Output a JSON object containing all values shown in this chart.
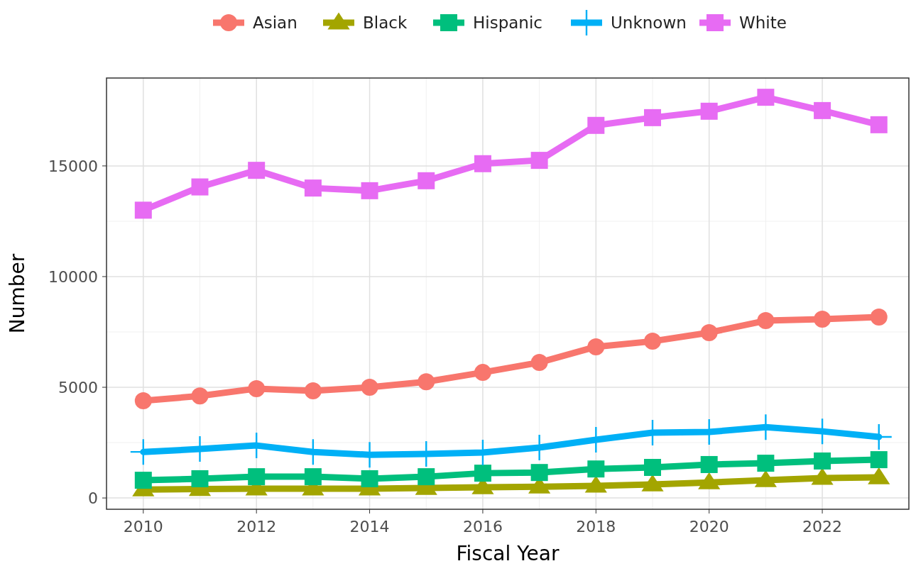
{
  "chart_data": {
    "type": "line",
    "xlabel": "Fiscal Year",
    "ylabel": "Number",
    "x": [
      2010,
      2011,
      2012,
      2013,
      2014,
      2015,
      2016,
      2017,
      2018,
      2019,
      2020,
      2021,
      2022,
      2023
    ],
    "series": [
      {
        "name": "Asian",
        "color": "#f8766d",
        "marker": "circle",
        "values": [
          4390,
          4610,
          4940,
          4840,
          5000,
          5250,
          5670,
          6120,
          6830,
          7080,
          7470,
          8010,
          8080,
          8170
        ]
      },
      {
        "name": "Black",
        "color": "#a3a500",
        "marker": "triangle",
        "values": [
          380,
          400,
          420,
          420,
          420,
          450,
          480,
          510,
          550,
          610,
          700,
          800,
          900,
          930
        ]
      },
      {
        "name": "Hispanic",
        "color": "#00bf7d",
        "marker": "square",
        "values": [
          800,
          870,
          960,
          960,
          870,
          960,
          1120,
          1150,
          1310,
          1380,
          1510,
          1570,
          1670,
          1730
        ]
      },
      {
        "name": "Unknown",
        "color": "#00b0f6",
        "marker": "cross",
        "values": [
          2080,
          2210,
          2370,
          2080,
          1950,
          1990,
          2050,
          2280,
          2630,
          2950,
          2980,
          3200,
          3010,
          2760
        ]
      },
      {
        "name": "White",
        "color": "#e76bf3",
        "marker": "square",
        "values": [
          13000,
          14050,
          14800,
          14000,
          13880,
          14330,
          15100,
          15250,
          16830,
          17180,
          17470,
          18100,
          17500,
          16860
        ]
      }
    ],
    "xlim": [
      2009.35,
      2023.53
    ],
    "xticks": [
      2010,
      2012,
      2014,
      2016,
      2018,
      2020,
      2022
    ],
    "ylim": [
      -510,
      18970
    ],
    "yticks": [
      0,
      5000,
      10000,
      15000
    ],
    "grid": true,
    "legend": "top",
    "line_style": "solid"
  }
}
